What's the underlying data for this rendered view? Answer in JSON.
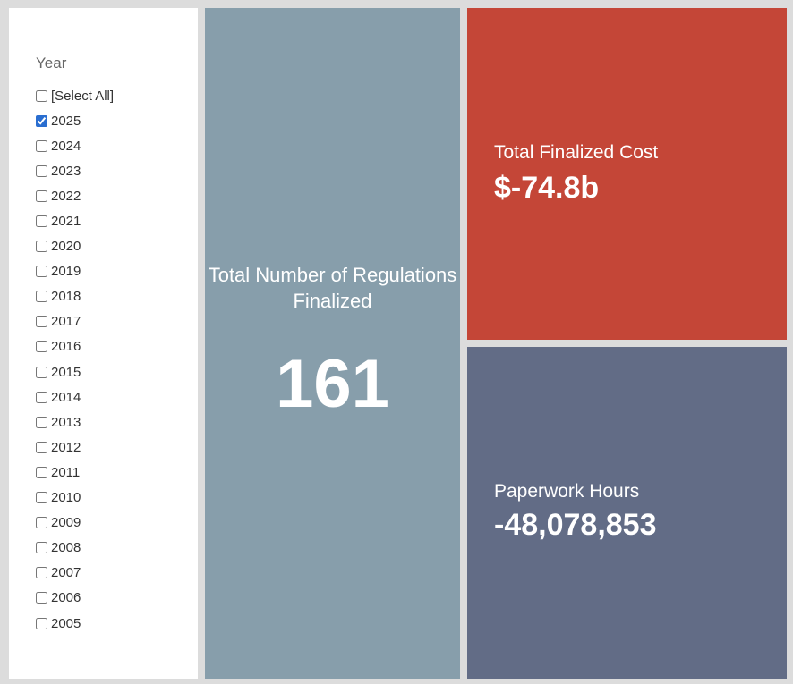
{
  "filter": {
    "title": "Year",
    "items": [
      {
        "label": "[Select All]",
        "checked": false
      },
      {
        "label": "2025",
        "checked": true
      },
      {
        "label": "2024",
        "checked": false
      },
      {
        "label": "2023",
        "checked": false
      },
      {
        "label": "2022",
        "checked": false
      },
      {
        "label": "2021",
        "checked": false
      },
      {
        "label": "2020",
        "checked": false
      },
      {
        "label": "2019",
        "checked": false
      },
      {
        "label": "2018",
        "checked": false
      },
      {
        "label": "2017",
        "checked": false
      },
      {
        "label": "2016",
        "checked": false
      },
      {
        "label": "2015",
        "checked": false
      },
      {
        "label": "2014",
        "checked": false
      },
      {
        "label": "2013",
        "checked": false
      },
      {
        "label": "2012",
        "checked": false
      },
      {
        "label": "2011",
        "checked": false
      },
      {
        "label": "2010",
        "checked": false
      },
      {
        "label": "2009",
        "checked": false
      },
      {
        "label": "2008",
        "checked": false
      },
      {
        "label": "2007",
        "checked": false
      },
      {
        "label": "2006",
        "checked": false
      },
      {
        "label": "2005",
        "checked": false
      }
    ]
  },
  "tiles": {
    "regulations": {
      "label": "Total Number of Regulations Finalized",
      "value": "161",
      "color": "#879eab"
    },
    "cost": {
      "label": "Total Finalized Cost",
      "value": "$-74.8b",
      "color": "#c44637"
    },
    "hours": {
      "label": "Paperwork Hours",
      "value": "-48,078,853",
      "color": "#626c86"
    }
  }
}
